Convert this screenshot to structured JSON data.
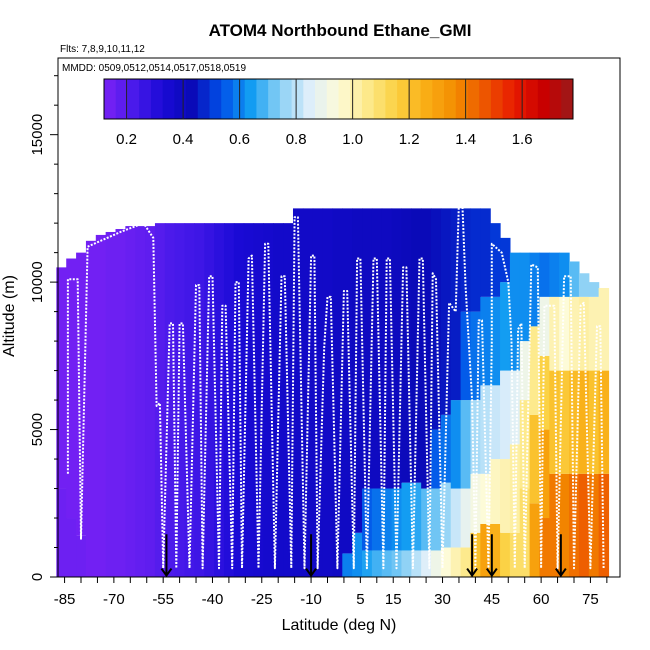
{
  "chart_data": {
    "type": "heatmap",
    "title": "ATOM4 Northbound Ethane_GMI",
    "subtitle_flights": "Flts: 7,8,9,10,11,12",
    "subtitle_dates": "MMDD: 0509,0512,0514,0517,0518,0519",
    "xlabel": "Latitude (deg N)",
    "ylabel": "Altitude (m)",
    "xlim": [
      -87,
      84
    ],
    "ylim": [
      0,
      17600
    ],
    "x_ticks": [
      -85,
      -70,
      -55,
      -40,
      -25,
      -10,
      5,
      15,
      30,
      45,
      60,
      75
    ],
    "x_tick_labels": [
      "-85",
      "-70",
      "-55",
      "-40",
      "-25",
      "-10",
      "5",
      "15",
      "30",
      "45",
      "60",
      "75"
    ],
    "y_ticks": [
      0,
      5000,
      10000,
      15000
    ],
    "y_tick_labels": [
      "0",
      "5000",
      "10000",
      "15000"
    ],
    "colorbar": {
      "min": 0.12,
      "max": 1.78,
      "ticks": [
        0.2,
        0.4,
        0.6,
        0.8,
        1.0,
        1.2,
        1.4,
        1.6
      ],
      "tick_labels": [
        "0.2",
        "0.4",
        "0.6",
        "0.8",
        "1.0",
        "1.2",
        "1.4",
        "1.6"
      ],
      "colors": [
        "#7b22f5",
        "#4a1aeb",
        "#1a0ad6",
        "#0a0ab8",
        "#0050e8",
        "#129cf2",
        "#8ad0f5",
        "#ddeefa",
        "#fdfbd8",
        "#fde98a",
        "#fbd040",
        "#f9ad15",
        "#f38c00",
        "#ed5500",
        "#e81a00",
        "#c80000",
        "#9a1a1a"
      ]
    },
    "columns": [
      {
        "lat": -86,
        "top": 10500,
        "zones": [
          [
            3000,
            0.15
          ],
          [
            10500,
            0.14
          ]
        ]
      },
      {
        "lat": -83,
        "top": 10800,
        "zones": [
          [
            2000,
            0.15
          ],
          [
            10800,
            0.14
          ]
        ]
      },
      {
        "lat": -80,
        "top": 11000,
        "zones": [
          [
            1400,
            0.15
          ],
          [
            11000,
            0.14
          ]
        ]
      },
      {
        "lat": -77,
        "top": 11400,
        "zones": [
          [
            11400,
            0.14
          ]
        ]
      },
      {
        "lat": -74,
        "top": 11600,
        "zones": [
          [
            11600,
            0.14
          ]
        ]
      },
      {
        "lat": -71,
        "top": 11700,
        "zones": [
          [
            11700,
            0.15
          ]
        ]
      },
      {
        "lat": -68,
        "top": 11800,
        "zones": [
          [
            11800,
            0.15
          ]
        ]
      },
      {
        "lat": -65,
        "top": 11900,
        "zones": [
          [
            11900,
            0.16
          ]
        ]
      },
      {
        "lat": -62,
        "top": 11900,
        "zones": [
          [
            11900,
            0.17
          ]
        ]
      },
      {
        "lat": -59,
        "top": 11900,
        "zones": [
          [
            11900,
            0.18
          ]
        ]
      },
      {
        "lat": -56,
        "top": 12000,
        "zones": [
          [
            12000,
            0.2
          ]
        ]
      },
      {
        "lat": -53,
        "top": 12000,
        "zones": [
          [
            12000,
            0.22
          ]
        ]
      },
      {
        "lat": -50,
        "top": 12000,
        "zones": [
          [
            12000,
            0.23
          ]
        ]
      },
      {
        "lat": -47,
        "top": 12000,
        "zones": [
          [
            12000,
            0.24
          ]
        ]
      },
      {
        "lat": -44,
        "top": 12000,
        "zones": [
          [
            12000,
            0.25
          ]
        ]
      },
      {
        "lat": -41,
        "top": 12000,
        "zones": [
          [
            12000,
            0.27
          ]
        ]
      },
      {
        "lat": -38,
        "top": 12000,
        "zones": [
          [
            12000,
            0.29
          ]
        ]
      },
      {
        "lat": -35,
        "top": 12000,
        "zones": [
          [
            12000,
            0.31
          ]
        ]
      },
      {
        "lat": -32,
        "top": 12000,
        "zones": [
          [
            12000,
            0.33
          ]
        ]
      },
      {
        "lat": -29,
        "top": 12000,
        "zones": [
          [
            12000,
            0.34
          ]
        ]
      },
      {
        "lat": -26,
        "top": 12000,
        "zones": [
          [
            12000,
            0.35
          ]
        ]
      },
      {
        "lat": -23,
        "top": 12000,
        "zones": [
          [
            12000,
            0.36
          ]
        ]
      },
      {
        "lat": -20,
        "top": 12000,
        "zones": [
          [
            12000,
            0.37
          ]
        ]
      },
      {
        "lat": -17,
        "top": 12000,
        "zones": [
          [
            12000,
            0.37
          ]
        ]
      },
      {
        "lat": -14,
        "top": 12500,
        "zones": [
          [
            12500,
            0.38
          ]
        ]
      },
      {
        "lat": -11,
        "top": 12500,
        "zones": [
          [
            12500,
            0.38
          ]
        ]
      },
      {
        "lat": -8,
        "top": 12500,
        "zones": [
          [
            12500,
            0.38
          ]
        ]
      },
      {
        "lat": -5,
        "top": 12500,
        "zones": [
          [
            12500,
            0.38
          ]
        ]
      },
      {
        "lat": -2,
        "top": 12500,
        "zones": [
          [
            12500,
            0.39
          ]
        ]
      },
      {
        "lat": 1,
        "top": 12500,
        "zones": [
          [
            800,
            0.6
          ],
          [
            12500,
            0.39
          ]
        ]
      },
      {
        "lat": 4,
        "top": 12500,
        "zones": [
          [
            1500,
            0.62
          ],
          [
            12500,
            0.4
          ]
        ]
      },
      {
        "lat": 7,
        "top": 12500,
        "zones": [
          [
            900,
            0.65
          ],
          [
            3000,
            0.55
          ],
          [
            12500,
            0.4
          ]
        ]
      },
      {
        "lat": 10,
        "top": 12500,
        "zones": [
          [
            900,
            0.68
          ],
          [
            3000,
            0.58
          ],
          [
            12500,
            0.4
          ]
        ]
      },
      {
        "lat": 13,
        "top": 12500,
        "zones": [
          [
            900,
            0.7
          ],
          [
            3000,
            0.6
          ],
          [
            12500,
            0.4
          ]
        ]
      },
      {
        "lat": 16,
        "top": 12500,
        "zones": [
          [
            900,
            0.72
          ],
          [
            3000,
            0.62
          ],
          [
            12500,
            0.41
          ]
        ]
      },
      {
        "lat": 19,
        "top": 12500,
        "zones": [
          [
            900,
            0.75
          ],
          [
            3200,
            0.64
          ],
          [
            12500,
            0.42
          ]
        ]
      },
      {
        "lat": 22,
        "top": 12500,
        "zones": [
          [
            900,
            0.8
          ],
          [
            3200,
            0.66
          ],
          [
            12500,
            0.43
          ]
        ]
      },
      {
        "lat": 25,
        "top": 12500,
        "zones": [
          [
            900,
            0.85
          ],
          [
            3000,
            0.7
          ],
          [
            12500,
            0.43
          ]
        ]
      },
      {
        "lat": 28,
        "top": 12500,
        "zones": [
          [
            900,
            0.9
          ],
          [
            3000,
            0.72
          ],
          [
            5000,
            0.55
          ],
          [
            12500,
            0.44
          ]
        ]
      },
      {
        "lat": 31,
        "top": 12500,
        "zones": [
          [
            1000,
            0.95
          ],
          [
            3200,
            0.76
          ],
          [
            5500,
            0.58
          ],
          [
            12500,
            0.45
          ]
        ]
      },
      {
        "lat": 34,
        "top": 12500,
        "zones": [
          [
            1000,
            1.0
          ],
          [
            3000,
            0.82
          ],
          [
            6000,
            0.62
          ],
          [
            12500,
            0.46
          ]
        ]
      },
      {
        "lat": 37,
        "top": 12500,
        "zones": [
          [
            1000,
            1.05
          ],
          [
            3000,
            0.88
          ],
          [
            6000,
            0.7
          ],
          [
            9000,
            0.55
          ],
          [
            12500,
            0.47
          ]
        ]
      },
      {
        "lat": 40,
        "top": 12500,
        "zones": [
          [
            1500,
            1.2
          ],
          [
            3500,
            0.92
          ],
          [
            6000,
            0.78
          ],
          [
            9000,
            0.58
          ],
          [
            12500,
            0.48
          ]
        ]
      },
      {
        "lat": 43,
        "top": 12500,
        "zones": [
          [
            1800,
            1.3
          ],
          [
            3500,
            0.95
          ],
          [
            6500,
            0.8
          ],
          [
            9500,
            0.6
          ],
          [
            12500,
            0.48
          ]
        ]
      },
      {
        "lat": 46,
        "top": 12000,
        "zones": [
          [
            1800,
            1.25
          ],
          [
            4000,
            0.98
          ],
          [
            6500,
            0.82
          ],
          [
            9500,
            0.62
          ],
          [
            12000,
            0.5
          ]
        ]
      },
      {
        "lat": 49,
        "top": 11500,
        "zones": [
          [
            1500,
            1.15
          ],
          [
            4000,
            1.0
          ],
          [
            7000,
            0.84
          ],
          [
            10000,
            0.64
          ],
          [
            11500,
            0.5
          ]
        ]
      },
      {
        "lat": 52,
        "top": 11000,
        "zones": [
          [
            1500,
            1.1
          ],
          [
            4500,
            1.02
          ],
          [
            7000,
            0.86
          ],
          [
            11000,
            0.62
          ]
        ]
      },
      {
        "lat": 55,
        "top": 11000,
        "zones": [
          [
            3000,
            1.1
          ],
          [
            6000,
            1.05
          ],
          [
            8000,
            0.9
          ],
          [
            11000,
            0.62
          ]
        ]
      },
      {
        "lat": 58,
        "top": 11000,
        "zones": [
          [
            2500,
            1.3
          ],
          [
            5500,
            1.2
          ],
          [
            8500,
            1.05
          ],
          [
            11000,
            0.6
          ]
        ]
      },
      {
        "lat": 61,
        "top": 11000,
        "zones": [
          [
            2000,
            1.4
          ],
          [
            5000,
            1.3
          ],
          [
            7500,
            1.15
          ],
          [
            9500,
            0.9
          ],
          [
            11000,
            0.58
          ]
        ]
      },
      {
        "lat": 64,
        "top": 11000,
        "zones": [
          [
            3500,
            1.4
          ],
          [
            7000,
            1.2
          ],
          [
            9500,
            1.0
          ],
          [
            11000,
            0.6
          ]
        ]
      },
      {
        "lat": 67,
        "top": 11000,
        "zones": [
          [
            3500,
            1.38
          ],
          [
            7000,
            1.18
          ],
          [
            9500,
            0.95
          ],
          [
            11000,
            0.62
          ]
        ]
      },
      {
        "lat": 70,
        "top": 10700,
        "zones": [
          [
            3500,
            1.42
          ],
          [
            7000,
            1.22
          ],
          [
            9500,
            1.0
          ],
          [
            10700,
            0.7
          ]
        ]
      },
      {
        "lat": 73,
        "top": 10300,
        "zones": [
          [
            3500,
            1.45
          ],
          [
            7000,
            1.25
          ],
          [
            9500,
            1.02
          ],
          [
            10300,
            0.75
          ]
        ]
      },
      {
        "lat": 76,
        "top": 10000,
        "zones": [
          [
            3500,
            1.4
          ],
          [
            7000,
            1.2
          ],
          [
            9500,
            1.0
          ],
          [
            10000,
            0.75
          ]
        ]
      },
      {
        "lat": 79,
        "top": 9800,
        "zones": [
          [
            3500,
            1.45
          ],
          [
            7000,
            1.25
          ],
          [
            9800,
            1.0
          ]
        ]
      }
    ],
    "flight_track": [
      [
        -84,
        3500
      ],
      [
        -84,
        10100
      ],
      [
        -81,
        10100
      ],
      [
        -80,
        1300
      ],
      [
        -78,
        11200
      ],
      [
        -74,
        11400
      ],
      [
        -70,
        11600
      ],
      [
        -68,
        11700
      ],
      [
        -61,
        12000
      ],
      [
        -58,
        11500
      ],
      [
        -57,
        5800
      ],
      [
        -56,
        5900
      ],
      [
        -55,
        300
      ],
      [
        -53,
        8600
      ],
      [
        -52,
        8600
      ],
      [
        -51,
        300
      ],
      [
        -50,
        8600
      ],
      [
        -49,
        8600
      ],
      [
        -47,
        300
      ],
      [
        -45,
        9900
      ],
      [
        -44,
        9900
      ],
      [
        -43,
        300
      ],
      [
        -41,
        10200
      ],
      [
        -40,
        10200
      ],
      [
        -38,
        300
      ],
      [
        -37,
        9200
      ],
      [
        -36,
        9200
      ],
      [
        -34,
        300
      ],
      [
        -33,
        10000
      ],
      [
        -32,
        10000
      ],
      [
        -31,
        300
      ],
      [
        -29,
        10800
      ],
      [
        -28,
        10900
      ],
      [
        -26,
        300
      ],
      [
        -24,
        11300
      ],
      [
        -23,
        11300
      ],
      [
        -21,
        300
      ],
      [
        -19,
        10200
      ],
      [
        -18,
        10200
      ],
      [
        -16,
        300
      ],
      [
        -15,
        12200
      ],
      [
        -14,
        12200
      ],
      [
        -12,
        300
      ],
      [
        -10,
        10900
      ],
      [
        -9,
        10900
      ],
      [
        -8,
        300
      ],
      [
        -6,
        7800
      ],
      [
        -5,
        9500
      ],
      [
        -4,
        9500
      ],
      [
        -2,
        300
      ],
      [
        0,
        9700
      ],
      [
        1,
        9700
      ],
      [
        3,
        300
      ],
      [
        4,
        10800
      ],
      [
        5,
        10800
      ],
      [
        7,
        300
      ],
      [
        9,
        10800
      ],
      [
        10,
        10800
      ],
      [
        12,
        300
      ],
      [
        13,
        10800
      ],
      [
        14,
        10800
      ],
      [
        16,
        300
      ],
      [
        18,
        10500
      ],
      [
        19,
        10500
      ],
      [
        21,
        300
      ],
      [
        23,
        10800
      ],
      [
        24,
        10800
      ],
      [
        26,
        300
      ],
      [
        27,
        10300
      ],
      [
        28,
        10100
      ],
      [
        30,
        300
      ],
      [
        32,
        9300
      ],
      [
        34,
        9000
      ],
      [
        35,
        12800
      ],
      [
        36,
        12800
      ],
      [
        37,
        9900
      ],
      [
        39,
        6000
      ],
      [
        40,
        300
      ],
      [
        41,
        8700
      ],
      [
        42,
        8700
      ],
      [
        44,
        300
      ],
      [
        45,
        8000
      ],
      [
        45,
        11300
      ],
      [
        48,
        11000
      ],
      [
        50,
        10000
      ],
      [
        51,
        8000
      ],
      [
        52,
        300
      ],
      [
        53,
        8400
      ],
      [
        54,
        8600
      ],
      [
        55,
        300
      ],
      [
        57,
        10600
      ],
      [
        59,
        10500
      ],
      [
        60,
        300
      ],
      [
        61,
        9200
      ],
      [
        64,
        9200
      ],
      [
        65,
        300
      ],
      [
        67,
        10200
      ],
      [
        69,
        10200
      ],
      [
        70,
        300
      ],
      [
        72,
        9200
      ],
      [
        73,
        9300
      ],
      [
        75,
        300
      ],
      [
        77,
        8500
      ],
      [
        78,
        8500
      ],
      [
        79,
        300
      ]
    ],
    "arrow_markers_lat": [
      -54,
      -10,
      39,
      45,
      66
    ]
  }
}
